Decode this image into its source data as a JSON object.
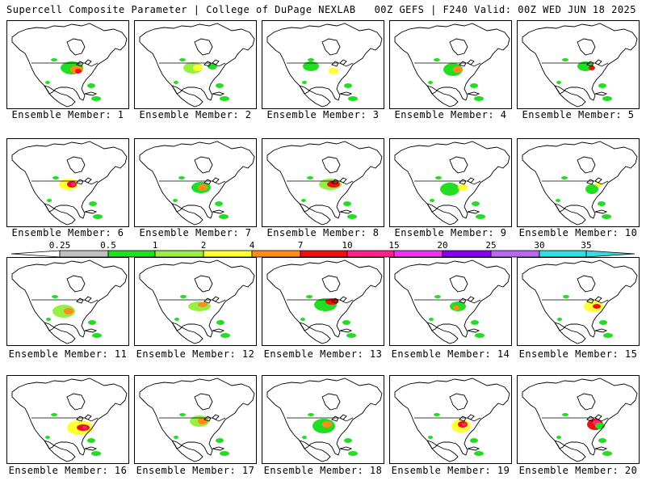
{
  "header": {
    "left": "Supercell Composite Parameter | College of DuPage NEXLAB",
    "right": "00Z GEFS | F240 Valid: 00Z WED JUN 18 2025"
  },
  "members": [
    {
      "label": "Ensemble Member: 1"
    },
    {
      "label": "Ensemble Member: 2"
    },
    {
      "label": "Ensemble Member: 3"
    },
    {
      "label": "Ensemble Member: 4"
    },
    {
      "label": "Ensemble Member: 5"
    },
    {
      "label": "Ensemble Member: 6"
    },
    {
      "label": "Ensemble Member: 7"
    },
    {
      "label": "Ensemble Member: 8"
    },
    {
      "label": "Ensemble Member: 9"
    },
    {
      "label": "Ensemble Member: 10"
    },
    {
      "label": "Ensemble Member: 11"
    },
    {
      "label": "Ensemble Member: 12"
    },
    {
      "label": "Ensemble Member: 13"
    },
    {
      "label": "Ensemble Member: 14"
    },
    {
      "label": "Ensemble Member: 15"
    },
    {
      "label": "Ensemble Member: 16"
    },
    {
      "label": "Ensemble Member: 17"
    },
    {
      "label": "Ensemble Member: 18"
    },
    {
      "label": "Ensemble Member: 19"
    },
    {
      "label": "Ensemble Member: 20"
    }
  ],
  "colorbar": {
    "labels": [
      "0.25",
      "0.5",
      "1",
      "2",
      "4",
      "7",
      "10",
      "15",
      "20",
      "25",
      "30",
      "35"
    ],
    "colors": [
      "#ffffff",
      "#bfbfbf",
      "#22dd22",
      "#99ee44",
      "#ffff33",
      "#ff8c1a",
      "#ee1111",
      "#ff2288",
      "#ee33ee",
      "#8800ee",
      "#bb66ee",
      "#33dddd"
    ]
  }
}
